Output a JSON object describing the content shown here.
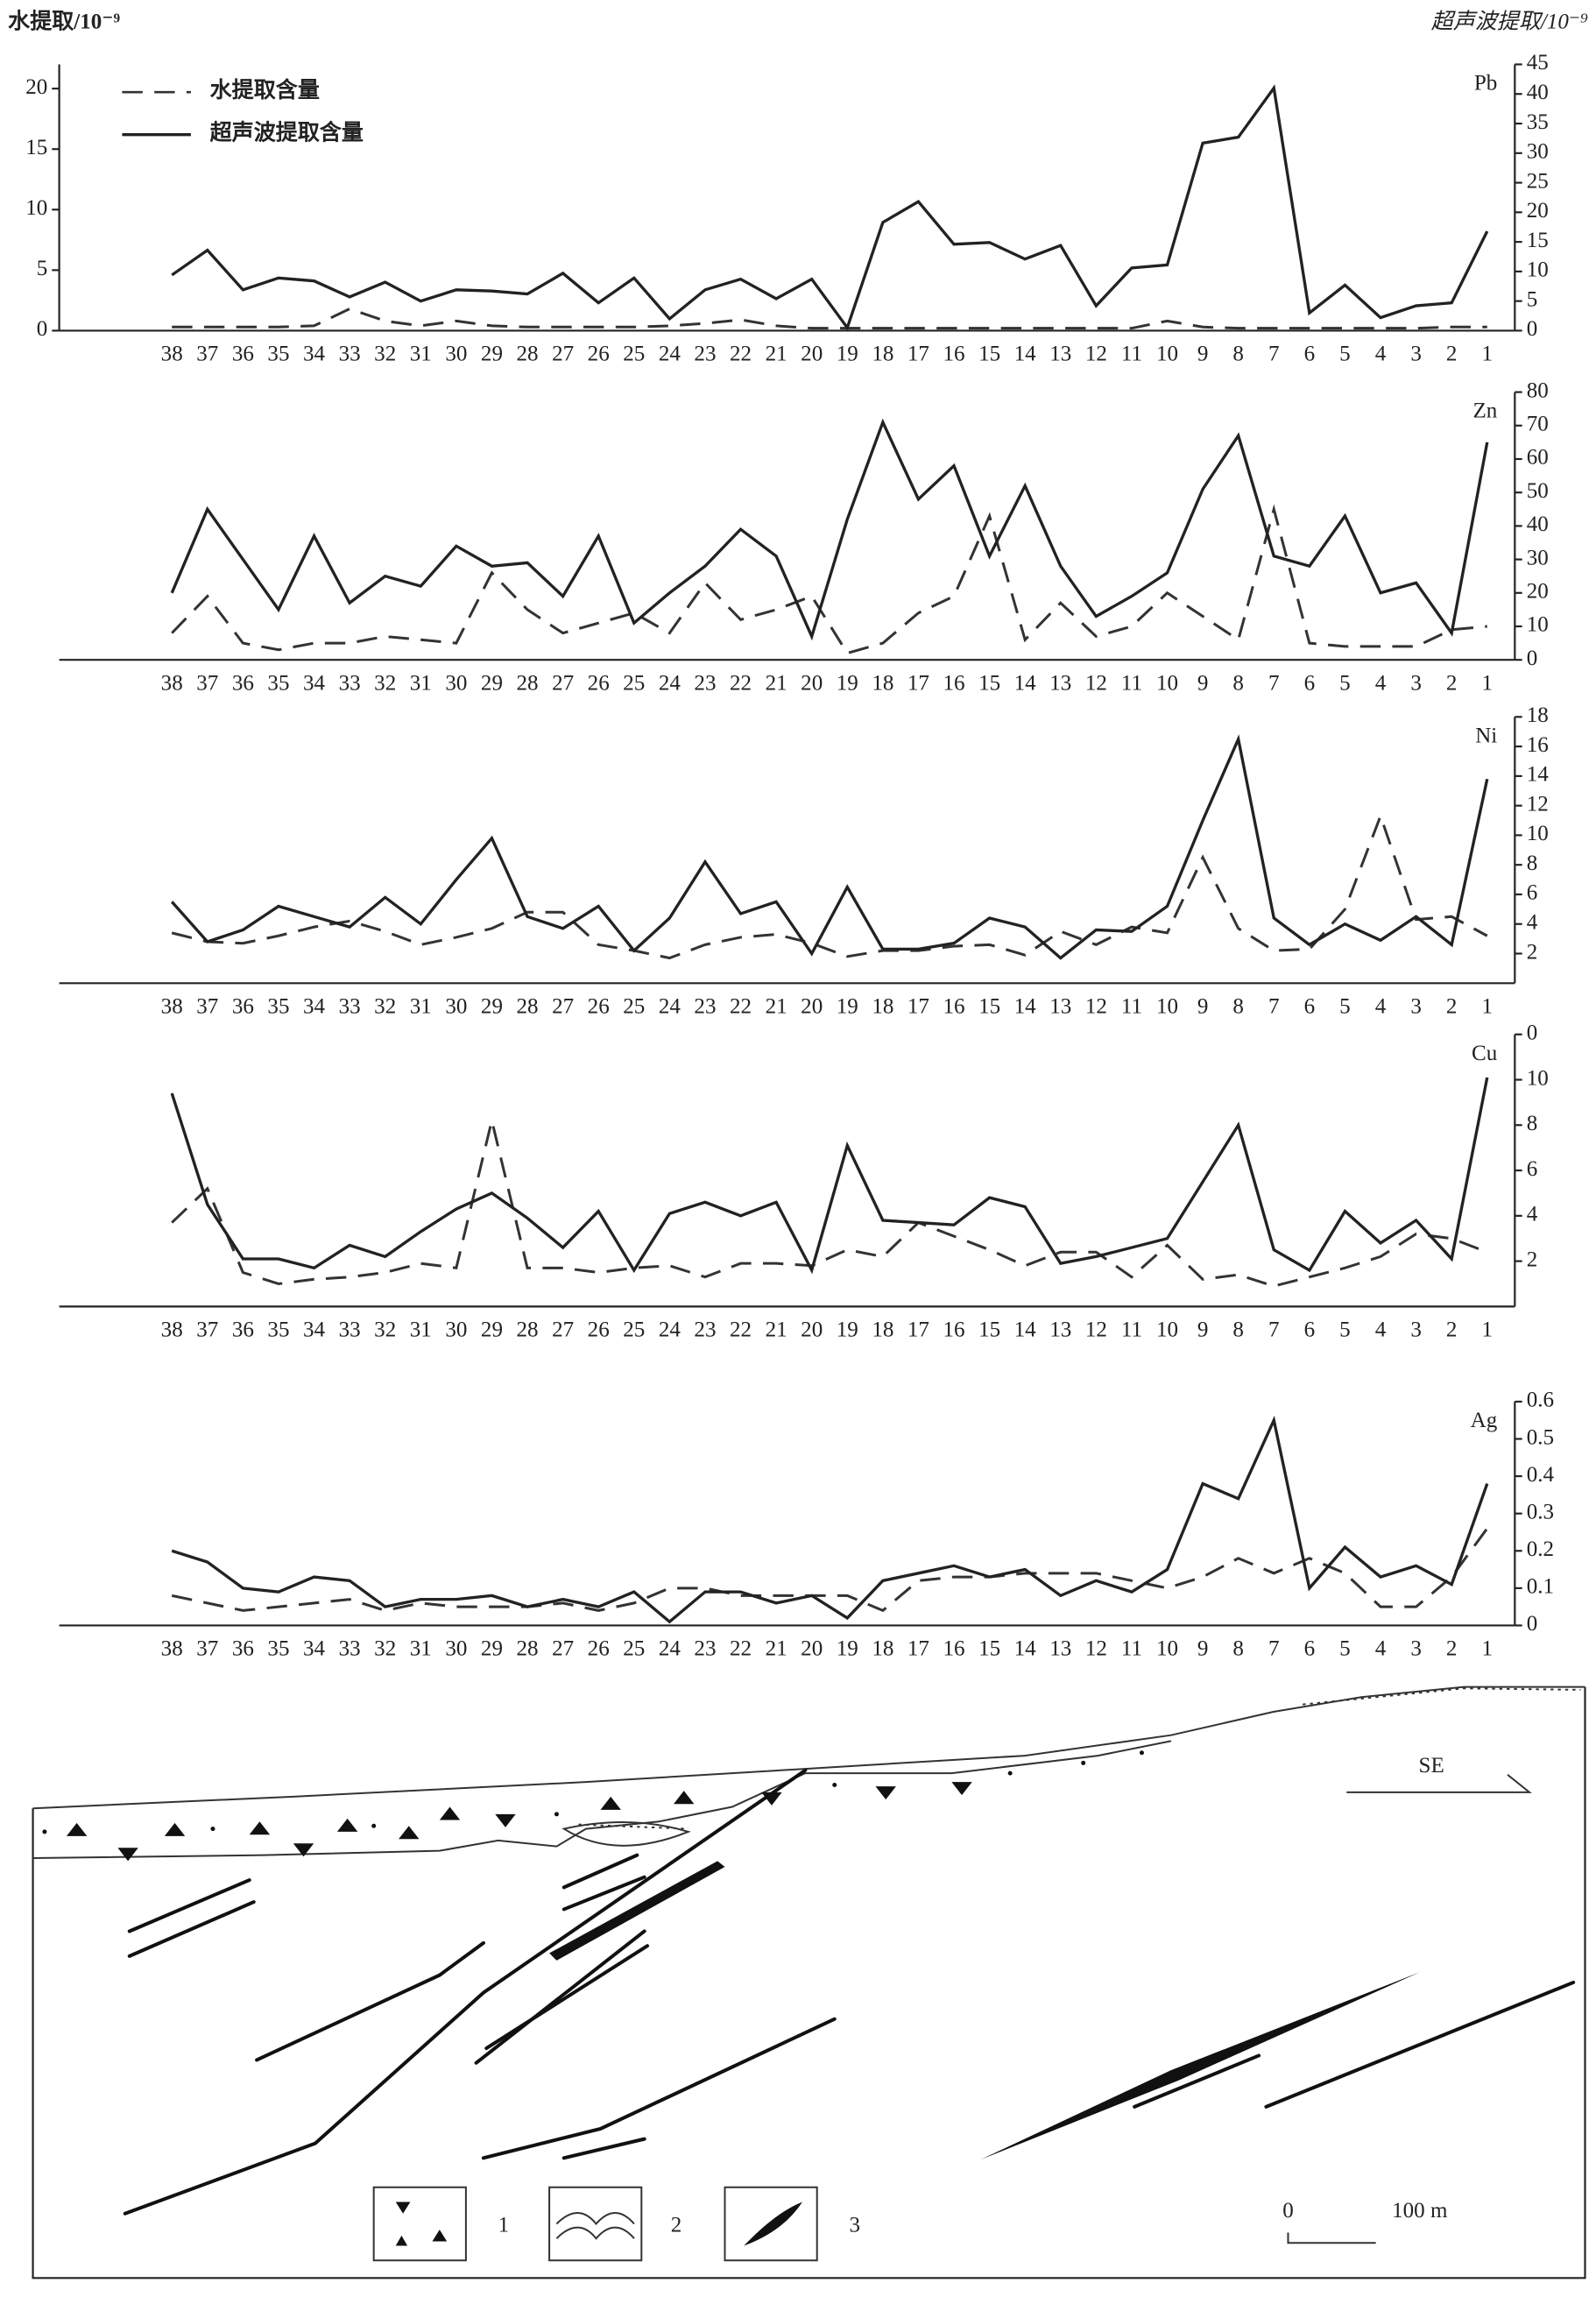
{
  "chart_data": [
    {
      "type": "line",
      "title": "Pb",
      "y_label": "水提取/10⁻⁹",
      "y2_label": "超声波提取/10⁻⁹",
      "legend": "upper left",
      "categories": [
        "38",
        "37",
        "36",
        "35",
        "34",
        "33",
        "32",
        "31",
        "30",
        "29",
        "28",
        "27",
        "26",
        "25",
        "24",
        "23",
        "22",
        "21",
        "20",
        "19",
        "18",
        "17",
        "16",
        "15",
        "14",
        "13",
        "12",
        "11",
        "10",
        "9",
        "8",
        "7",
        "6",
        "5",
        "4",
        "3",
        "2",
        "1"
      ],
      "ylim": [
        0,
        22
      ],
      "yticks": [
        0,
        5,
        10,
        15,
        20
      ],
      "y2lim": [
        0,
        45
      ],
      "y2ticks": [
        0,
        5,
        10,
        15,
        20,
        25,
        30,
        35,
        40,
        45
      ],
      "series": [
        {
          "name": "水提取含量",
          "color": "#333333",
          "dashed": true,
          "values": [
            0.3,
            0.3,
            0.3,
            0.3,
            0.4,
            1.8,
            0.8,
            0.4,
            0.8,
            0.4,
            0.3,
            0.3,
            0.3,
            0.3,
            0.4,
            0.6,
            0.9,
            0.4,
            0.2,
            0.2,
            0.2,
            0.2,
            0.2,
            0.2,
            0.2,
            0.2,
            0.2,
            0.2,
            0.8,
            0.3,
            0.2,
            0.2,
            0.2,
            0.2,
            0.2,
            0.2,
            0.3,
            0.3
          ]
        },
        {
          "name": "超声波提取含量",
          "color": "#222222",
          "dashed": false,
          "axis": "y2",
          "values": [
            9.4,
            13.6,
            6.9,
            8.9,
            8.4,
            5.7,
            8.2,
            5,
            6.9,
            6.7,
            6.2,
            9.7,
            4.7,
            8.9,
            2,
            6.9,
            8.7,
            5.4,
            8.7,
            0.5,
            18.3,
            21.8,
            14.6,
            14.9,
            12.1,
            14.4,
            4.2,
            10.6,
            11.1,
            31.7,
            32.7,
            41,
            3,
            7.7,
            2.2,
            4.2,
            4.7,
            16.8
          ]
        }
      ]
    },
    {
      "type": "line",
      "title": "Zn",
      "categories": [
        "38",
        "37",
        "36",
        "35",
        "34",
        "33",
        "32",
        "31",
        "30",
        "29",
        "28",
        "27",
        "26",
        "25",
        "24",
        "23",
        "22",
        "21",
        "20",
        "19",
        "18",
        "17",
        "16",
        "15",
        "14",
        "13",
        "12",
        "11",
        "10",
        "9",
        "8",
        "7",
        "6",
        "5",
        "4",
        "3",
        "2",
        "1"
      ],
      "ylim": [
        0,
        80
      ],
      "yticks": [
        0,
        10,
        20,
        30,
        40,
        50,
        60,
        70,
        80
      ],
      "series": [
        {
          "color": "#333333",
          "dashed": true,
          "values": [
            8,
            19,
            5,
            3,
            5,
            5,
            7,
            6,
            5,
            26,
            15,
            8,
            11,
            14,
            8,
            23,
            12,
            15,
            19,
            2,
            5,
            14,
            19,
            43,
            6,
            17,
            7,
            10,
            20,
            13,
            6,
            45,
            5,
            4,
            4,
            4,
            9,
            10
          ]
        },
        {
          "color": "#222222",
          "dashed": false,
          "values": [
            20,
            45,
            30,
            15,
            37,
            17,
            25,
            22,
            34,
            28,
            29,
            19,
            37,
            11,
            20,
            28,
            39,
            31,
            7,
            42,
            71,
            48,
            58,
            31,
            52,
            28,
            13,
            19,
            26,
            51,
            67,
            31,
            28,
            43,
            20,
            23,
            8,
            65
          ]
        }
      ]
    },
    {
      "type": "line",
      "title": "Ni",
      "categories": [
        "38",
        "37",
        "36",
        "35",
        "34",
        "33",
        "32",
        "31",
        "30",
        "29",
        "28",
        "27",
        "26",
        "25",
        "24",
        "23",
        "22",
        "21",
        "20",
        "19",
        "18",
        "17",
        "16",
        "15",
        "14",
        "13",
        "12",
        "11",
        "10",
        "9",
        "8",
        "7",
        "6",
        "5",
        "4",
        "3",
        "2",
        "1"
      ],
      "ylim": [
        0,
        18
      ],
      "yticks": [
        2,
        4,
        6,
        8,
        10,
        12,
        14,
        16,
        18
      ],
      "series": [
        {
          "color": "#333333",
          "dashed": true,
          "values": [
            3.4,
            2.8,
            2.7,
            3.2,
            3.8,
            4.2,
            3.5,
            2.6,
            3.1,
            3.7,
            4.8,
            4.8,
            2.6,
            2.2,
            1.7,
            2.6,
            3.1,
            3.3,
            2.7,
            1.8,
            2.2,
            2.2,
            2.5,
            2.6,
            1.9,
            3.5,
            2.6,
            3.8,
            3.4,
            8.5,
            3.7,
            2.2,
            2.3,
            5,
            11.3,
            4.3,
            4.5,
            3.2
          ]
        },
        {
          "color": "#222222",
          "dashed": false,
          "values": [
            5.5,
            2.8,
            3.6,
            5.2,
            4.5,
            3.8,
            5.8,
            4,
            7,
            9.8,
            4.5,
            3.7,
            5.2,
            2.2,
            4.4,
            8.2,
            4.7,
            5.5,
            2,
            6.5,
            2.3,
            2.3,
            2.7,
            4.4,
            3.8,
            1.7,
            3.6,
            3.5,
            5.2,
            11,
            16.5,
            4.4,
            2.6,
            4,
            2.9,
            4.5,
            2.6,
            13.8
          ]
        }
      ]
    },
    {
      "type": "line",
      "title": "Cu",
      "categories": [
        "38",
        "37",
        "36",
        "35",
        "34",
        "33",
        "32",
        "31",
        "30",
        "29",
        "28",
        "27",
        "26",
        "25",
        "24",
        "23",
        "22",
        "21",
        "20",
        "19",
        "18",
        "17",
        "16",
        "15",
        "14",
        "13",
        "12",
        "11",
        "10",
        "9",
        "8",
        "7",
        "6",
        "5",
        "4",
        "3",
        "2",
        "1"
      ],
      "ylim": [
        0,
        12
      ],
      "yticks": [
        {
          "value": 12,
          "label": "0"
        },
        10,
        8,
        6,
        4,
        2
      ],
      "series": [
        {
          "color": "#333333",
          "dashed": true,
          "values": [
            3.7,
            5.2,
            1.5,
            1,
            1.2,
            1.3,
            1.5,
            1.9,
            1.7,
            8.2,
            1.7,
            1.7,
            1.5,
            1.7,
            1.8,
            1.3,
            1.9,
            1.9,
            1.8,
            2.5,
            2.2,
            3.7,
            3.1,
            2.5,
            1.8,
            2.4,
            2.4,
            1.3,
            2.7,
            1.2,
            1.4,
            0.9,
            1.3,
            1.7,
            2.2,
            3.2,
            3,
            2.4
          ]
        },
        {
          "color": "#222222",
          "dashed": false,
          "values": [
            9.4,
            4.5,
            2.1,
            2.1,
            1.7,
            2.7,
            2.2,
            3.3,
            4.3,
            5,
            3.9,
            2.6,
            4.2,
            1.6,
            4.1,
            4.6,
            4,
            4.6,
            1.6,
            7.1,
            3.8,
            3.7,
            3.6,
            4.8,
            4.4,
            1.9,
            2.2,
            2.6,
            3,
            5.5,
            8,
            2.5,
            1.6,
            4.2,
            2.8,
            3.8,
            2.1,
            10.1
          ]
        }
      ]
    },
    {
      "type": "line",
      "title": "Ag",
      "categories": [
        "38",
        "37",
        "36",
        "35",
        "34",
        "33",
        "32",
        "31",
        "30",
        "29",
        "28",
        "27",
        "26",
        "25",
        "24",
        "23",
        "22",
        "21",
        "20",
        "19",
        "18",
        "17",
        "16",
        "15",
        "14",
        "13",
        "12",
        "11",
        "10",
        "9",
        "8",
        "7",
        "6",
        "5",
        "4",
        "3",
        "2",
        "1"
      ],
      "ylim": [
        0,
        0.6
      ],
      "yticks": [
        0,
        0.1,
        0.2,
        0.3,
        0.4,
        0.5,
        0.6
      ],
      "series": [
        {
          "color": "#333333",
          "dashed": true,
          "values": [
            0.08,
            0.06,
            0.04,
            0.05,
            0.06,
            0.07,
            0.04,
            0.06,
            0.05,
            0.05,
            0.05,
            0.06,
            0.04,
            0.06,
            0.1,
            0.1,
            0.08,
            0.08,
            0.08,
            0.08,
            0.04,
            0.12,
            0.13,
            0.13,
            0.14,
            0.14,
            0.14,
            0.12,
            0.1,
            0.13,
            0.18,
            0.14,
            0.18,
            0.14,
            0.05,
            0.05,
            0.13,
            0.26
          ]
        },
        {
          "color": "#222222",
          "dashed": false,
          "values": [
            0.2,
            0.17,
            0.1,
            0.09,
            0.13,
            0.12,
            0.05,
            0.07,
            0.07,
            0.08,
            0.05,
            0.07,
            0.05,
            0.09,
            0.01,
            0.09,
            0.09,
            0.06,
            0.08,
            0.02,
            0.12,
            0.14,
            0.16,
            0.13,
            0.15,
            0.08,
            0.12,
            0.09,
            0.15,
            0.38,
            0.34,
            0.55,
            0.1,
            0.21,
            0.13,
            0.16,
            0.11,
            0.38
          ]
        }
      ]
    }
  ],
  "section": {
    "direction": "SE",
    "legend": [
      "1",
      "2",
      "3"
    ],
    "scale": [
      "0",
      "100 m"
    ]
  }
}
